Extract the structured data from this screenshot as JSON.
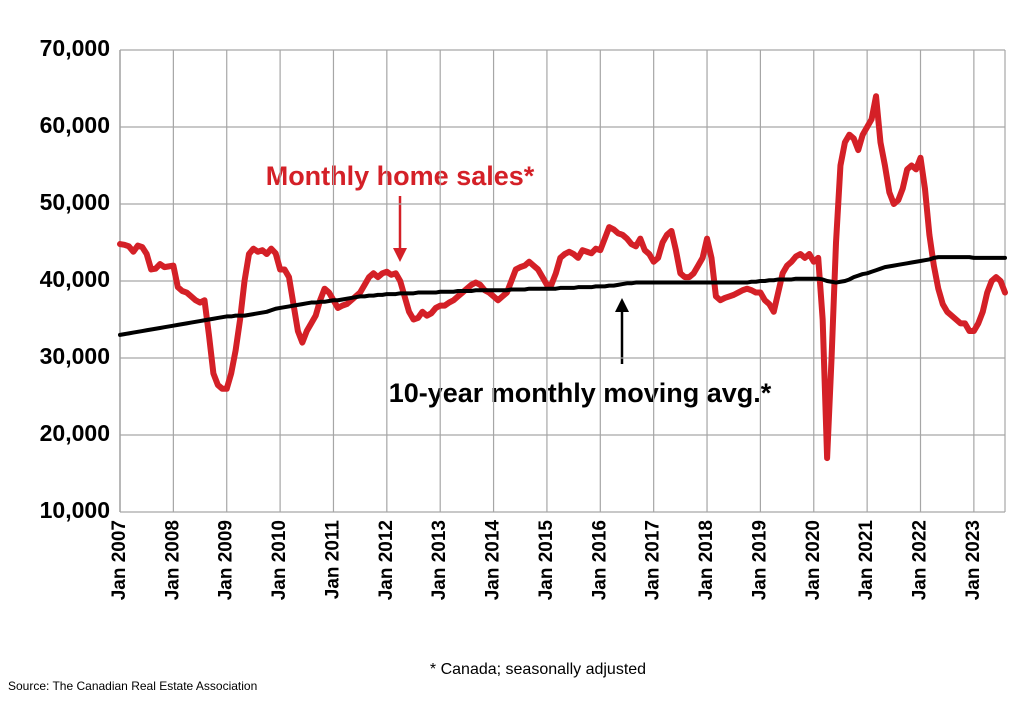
{
  "chart_data": {
    "type": "line",
    "categories": [
      "Jan 2007",
      null,
      null,
      null,
      null,
      null,
      null,
      null,
      null,
      null,
      null,
      null,
      "Jan 2008",
      null,
      null,
      null,
      null,
      null,
      null,
      null,
      null,
      null,
      null,
      null,
      "Jan 2009",
      null,
      null,
      null,
      null,
      null,
      null,
      null,
      null,
      null,
      null,
      null,
      "Jan 2010",
      null,
      null,
      null,
      null,
      null,
      null,
      null,
      null,
      null,
      null,
      null,
      "Jan 2011",
      null,
      null,
      null,
      null,
      null,
      null,
      null,
      null,
      null,
      null,
      null,
      "Jan 2012",
      null,
      null,
      null,
      null,
      null,
      null,
      null,
      null,
      null,
      null,
      null,
      "Jan 2013",
      null,
      null,
      null,
      null,
      null,
      null,
      null,
      null,
      null,
      null,
      null,
      "Jan 2014",
      null,
      null,
      null,
      null,
      null,
      null,
      null,
      null,
      null,
      null,
      null,
      "Jan 2015",
      null,
      null,
      null,
      null,
      null,
      null,
      null,
      null,
      null,
      null,
      null,
      "Jan 2016",
      null,
      null,
      null,
      null,
      null,
      null,
      null,
      null,
      null,
      null,
      null,
      "Jan 2017",
      null,
      null,
      null,
      null,
      null,
      null,
      null,
      null,
      null,
      null,
      null,
      "Jan 2018",
      null,
      null,
      null,
      null,
      null,
      null,
      null,
      null,
      null,
      null,
      null,
      "Jan 2019",
      null,
      null,
      null,
      null,
      null,
      null,
      null,
      null,
      null,
      null,
      null,
      "Jan 2020",
      null,
      null,
      null,
      null,
      null,
      null,
      null,
      null,
      null,
      null,
      null,
      "Jan 2021",
      null,
      null,
      null,
      null,
      null,
      null,
      null,
      null,
      null,
      null,
      null,
      "Jan 2022",
      null,
      null,
      null,
      null,
      null,
      null,
      null,
      null,
      null,
      null,
      null,
      "Jan 2023",
      null,
      null,
      null,
      null,
      null,
      null,
      null
    ],
    "series": [
      {
        "name": "Monthly home sales*",
        "color": "#d42027",
        "values": [
          44800,
          44700,
          44500,
          43800,
          44600,
          44400,
          43500,
          41500,
          41600,
          42200,
          41800,
          41900,
          42000,
          39200,
          38700,
          38500,
          38000,
          37500,
          37200,
          37500,
          33000,
          28000,
          26500,
          26000,
          26000,
          28000,
          31000,
          35000,
          40000,
          43500,
          44200,
          43800,
          44000,
          43500,
          44200,
          43600,
          41500,
          41500,
          40500,
          37000,
          33500,
          32000,
          33500,
          34500,
          35500,
          37500,
          39000,
          38500,
          37500,
          36500,
          36800,
          37000,
          37500,
          38000,
          38500,
          39500,
          40500,
          41000,
          40500,
          41000,
          41200,
          40800,
          41000,
          40000,
          38000,
          36000,
          35000,
          35200,
          36000,
          35500,
          35800,
          36500,
          36800,
          36800,
          37200,
          37500,
          38000,
          38500,
          39000,
          39500,
          39800,
          39500,
          38800,
          38500,
          38000,
          37500,
          38000,
          38500,
          40000,
          41500,
          41800,
          42000,
          42500,
          42000,
          41500,
          40500,
          39500,
          39500,
          41000,
          43000,
          43500,
          43800,
          43500,
          43000,
          44000,
          43800,
          43600,
          44200,
          44000,
          45500,
          47000,
          46700,
          46200,
          46000,
          45500,
          44800,
          44500,
          45500,
          44000,
          43500,
          42500,
          43000,
          45000,
          46000,
          46500,
          44000,
          41000,
          40500,
          40500,
          41000,
          42000,
          43000,
          45500,
          43000,
          38000,
          37500,
          37800,
          38000,
          38200,
          38500,
          38800,
          39000,
          38800,
          38500,
          38500,
          37500,
          37000,
          36000,
          38500,
          41000,
          42000,
          42500,
          43200,
          43500,
          43000,
          43500,
          42500,
          43000,
          35000,
          17000,
          30000,
          45000,
          55000,
          58000,
          59000,
          58500,
          57000,
          59000,
          60000,
          61000,
          64000,
          58000,
          55000,
          51500,
          50000,
          50500,
          52000,
          54500,
          55000,
          54500,
          56000,
          52000,
          46000,
          42000,
          39000,
          37000,
          36000,
          35500,
          35000,
          34500,
          34500,
          33500,
          33500,
          34500,
          36000,
          38500,
          40000,
          40500,
          40000,
          38500
        ]
      },
      {
        "name": "10-year monthly moving avg.*",
        "color": "#000000",
        "values": [
          33000,
          33100,
          33200,
          33300,
          33400,
          33500,
          33600,
          33700,
          33800,
          33900,
          34000,
          34100,
          34200,
          34300,
          34400,
          34500,
          34600,
          34700,
          34800,
          34900,
          35000,
          35100,
          35200,
          35300,
          35400,
          35400,
          35500,
          35500,
          35500,
          35600,
          35700,
          35800,
          35900,
          36000,
          36200,
          36400,
          36500,
          36600,
          36700,
          36800,
          36900,
          37000,
          37100,
          37200,
          37200,
          37300,
          37300,
          37400,
          37500,
          37500,
          37600,
          37700,
          37800,
          37900,
          38000,
          38000,
          38100,
          38100,
          38200,
          38200,
          38300,
          38300,
          38300,
          38400,
          38400,
          38400,
          38400,
          38500,
          38500,
          38500,
          38500,
          38500,
          38600,
          38600,
          38600,
          38600,
          38700,
          38700,
          38700,
          38700,
          38800,
          38800,
          38800,
          38800,
          38800,
          38800,
          38800,
          38800,
          38900,
          38900,
          38900,
          38900,
          39000,
          39000,
          39000,
          39000,
          39000,
          39000,
          39000,
          39100,
          39100,
          39100,
          39100,
          39200,
          39200,
          39200,
          39200,
          39300,
          39300,
          39300,
          39400,
          39400,
          39500,
          39600,
          39700,
          39700,
          39800,
          39800,
          39800,
          39800,
          39800,
          39800,
          39800,
          39800,
          39800,
          39800,
          39800,
          39800,
          39800,
          39800,
          39800,
          39800,
          39800,
          39800,
          39800,
          39800,
          39800,
          39800,
          39800,
          39800,
          39800,
          39800,
          39900,
          39900,
          40000,
          40000,
          40100,
          40100,
          40200,
          40200,
          40200,
          40200,
          40300,
          40300,
          40300,
          40300,
          40300,
          40300,
          40200,
          40000,
          39900,
          39800,
          39900,
          40000,
          40200,
          40500,
          40700,
          40900,
          41000,
          41200,
          41400,
          41600,
          41800,
          41900,
          42000,
          42100,
          42200,
          42300,
          42400,
          42500,
          42600,
          42700,
          42800,
          43000,
          43100,
          43100,
          43100,
          43100,
          43100,
          43100,
          43100,
          43100,
          43000,
          43000,
          43000,
          43000,
          43000,
          43000,
          43000,
          43000
        ]
      }
    ],
    "ylim": [
      10000,
      70000
    ],
    "yticks": [
      {
        "value": 10000,
        "label": "10,000"
      },
      {
        "value": 20000,
        "label": "20,000"
      },
      {
        "value": 30000,
        "label": "30,000"
      },
      {
        "value": 40000,
        "label": "40,000"
      },
      {
        "value": 50000,
        "label": "50,000"
      },
      {
        "value": 60000,
        "label": "60,000"
      },
      {
        "value": 70000,
        "label": "70,000"
      }
    ],
    "grid": true,
    "footnote": "* Canada; seasonally adjusted",
    "source": "Source: The Canadian Real Estate Association"
  }
}
